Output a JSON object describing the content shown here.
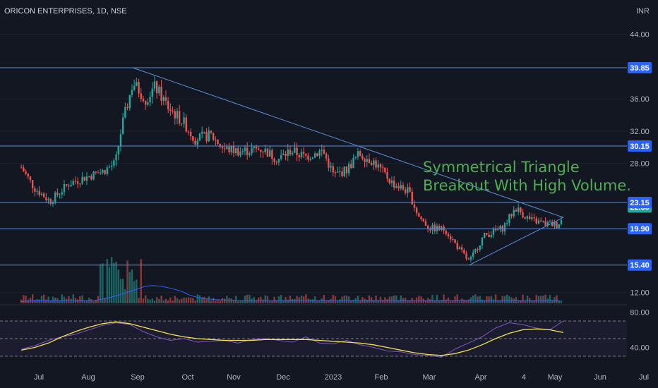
{
  "header": {
    "ticker": "ORICON ENTERPRISES, 1D, NSE",
    "currency": "INR"
  },
  "annotation": {
    "line1": "Symmetrical Triangle",
    "line2": "Breakout With High Volume."
  },
  "colors": {
    "background": "#131722",
    "up": "#26a69a",
    "down": "#ef5350",
    "level_line": "#5b8fd9",
    "tag": "#2962ff",
    "rsi": "#7e57c2",
    "rsi_ma": "#f5e04f",
    "volume_ma": "#2962ff"
  },
  "chart_data": [
    {
      "type": "candlestick",
      "title": "ORICON ENTERPRISES, 1D, NSE",
      "y_unit": "INR",
      "y_ticks": [
        12.0,
        15.4,
        19.9,
        22.6,
        23.15,
        28.0,
        30.15,
        32.0,
        36.0,
        39.85,
        44.0
      ],
      "x_ticks": [
        "Jul",
        "Aug",
        "Sep",
        "Oct",
        "Nov",
        "Dec",
        "2023",
        "Feb",
        "Mar",
        "Apr",
        "4",
        "May",
        "Jun",
        "Jul"
      ],
      "horizontal_levels": [
        39.85,
        30.15,
        23.15,
        19.9,
        15.4
      ],
      "last_price": 22.6,
      "trendlines": [
        {
          "from": {
            "date": "2022-08-29",
            "price": 39.85
          },
          "to": {
            "date": "2023-05-26",
            "price": 21.3
          }
        },
        {
          "from": {
            "date": "2023-03-28",
            "price": 15.4
          },
          "to": {
            "date": "2023-05-26",
            "price": 21.3
          }
        }
      ],
      "price_path": [
        {
          "date": "2022-06-20",
          "close": 27.5
        },
        {
          "date": "2022-06-28",
          "close": 25.0
        },
        {
          "date": "2022-07-08",
          "close": 23.3
        },
        {
          "date": "2022-07-20",
          "close": 25.5
        },
        {
          "date": "2022-07-29",
          "close": 26.2
        },
        {
          "date": "2022-08-10",
          "close": 27.0
        },
        {
          "date": "2022-08-18",
          "close": 28.0
        },
        {
          "date": "2022-08-22",
          "close": 32.5
        },
        {
          "date": "2022-08-29",
          "close": 38.0
        },
        {
          "date": "2022-09-06",
          "close": 36.0
        },
        {
          "date": "2022-09-12",
          "close": 37.5
        },
        {
          "date": "2022-09-20",
          "close": 35.0
        },
        {
          "date": "2022-09-30",
          "close": 33.0
        },
        {
          "date": "2022-10-07",
          "close": 31.0
        },
        {
          "date": "2022-10-17",
          "close": 31.5
        },
        {
          "date": "2022-10-25",
          "close": 29.8
        },
        {
          "date": "2022-11-05",
          "close": 29.5
        },
        {
          "date": "2022-11-18",
          "close": 29.8
        },
        {
          "date": "2022-11-28",
          "close": 28.5
        },
        {
          "date": "2022-12-06",
          "close": 29.6
        },
        {
          "date": "2022-12-15",
          "close": 28.8
        },
        {
          "date": "2022-12-26",
          "close": 29.6
        },
        {
          "date": "2023-01-02",
          "close": 26.5
        },
        {
          "date": "2023-01-10",
          "close": 27.2
        },
        {
          "date": "2023-01-18",
          "close": 29.2
        },
        {
          "date": "2023-01-27",
          "close": 28.2
        },
        {
          "date": "2023-02-08",
          "close": 25.5
        },
        {
          "date": "2023-02-18",
          "close": 24.5
        },
        {
          "date": "2023-02-24",
          "close": 21.5
        },
        {
          "date": "2023-03-03",
          "close": 20.0
        },
        {
          "date": "2023-03-13",
          "close": 19.8
        },
        {
          "date": "2023-03-20",
          "close": 17.8
        },
        {
          "date": "2023-03-28",
          "close": 15.8
        },
        {
          "date": "2023-04-06",
          "close": 19.0
        },
        {
          "date": "2023-04-18",
          "close": 20.0
        },
        {
          "date": "2023-04-26",
          "close": 22.5
        },
        {
          "date": "2023-05-05",
          "close": 21.0
        },
        {
          "date": "2023-05-15",
          "close": 20.5
        },
        {
          "date": "2023-05-22",
          "close": 20.4
        },
        {
          "date": "2023-05-25",
          "close": 21.0
        },
        {
          "date": "2023-05-26",
          "close": 22.6
        }
      ]
    },
    {
      "type": "line",
      "name": "RSI",
      "y_ticks": [
        40.0,
        80.0
      ],
      "levels": [
        70,
        50,
        30
      ],
      "values": [
        38,
        42,
        48,
        52,
        55,
        60,
        65,
        68,
        66,
        58,
        52,
        48,
        50,
        46,
        47,
        48,
        45,
        49,
        50,
        48,
        46,
        52,
        45,
        44,
        48,
        43,
        40,
        36,
        35,
        32,
        31,
        29,
        38,
        45,
        52,
        62,
        68,
        66,
        62,
        60,
        70
      ],
      "ma_values": [
        37,
        40,
        45,
        52,
        58,
        63,
        67,
        69,
        67,
        63,
        59,
        55,
        52,
        50,
        49,
        48,
        48,
        48,
        49,
        49,
        49,
        49,
        48,
        47,
        46,
        45,
        43,
        40,
        37,
        34,
        32,
        31,
        33,
        37,
        43,
        50,
        56,
        60,
        61,
        60,
        57
      ]
    }
  ]
}
